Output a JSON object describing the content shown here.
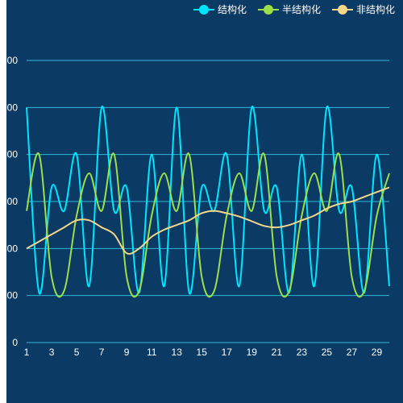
{
  "chart_data": {
    "type": "line",
    "x": [
      1,
      2,
      3,
      4,
      5,
      6,
      7,
      8,
      9,
      10,
      11,
      12,
      13,
      14,
      15,
      16,
      17,
      18,
      19,
      20,
      21,
      22,
      23,
      24,
      25,
      26,
      27,
      28,
      29,
      30
    ],
    "xticks": [
      "1",
      "3",
      "5",
      "7",
      "9",
      "11",
      "13",
      "15",
      "17",
      "19",
      "21",
      "23",
      "25",
      "27",
      "29"
    ],
    "yticks": [
      "0",
      "00",
      "00",
      "00",
      "00",
      "00",
      "00"
    ],
    "ylim": [
      0,
      600
    ],
    "grid": true,
    "legend_position": "top-right",
    "series": [
      {
        "name": "结构化",
        "color": "#00e5ff",
        "values": [
          500,
          106,
          330,
          280,
          400,
          120,
          500,
          280,
          330,
          106,
          400,
          120,
          500,
          106,
          330,
          280,
          400,
          120,
          500,
          280,
          330,
          106,
          400,
          120,
          500,
          280,
          330,
          106,
          400,
          120
        ]
      },
      {
        "name": "半结构化",
        "color": "#9be04a",
        "values": [
          280,
          400,
          140,
          110,
          270,
          360,
          280,
          400,
          140,
          110,
          270,
          360,
          280,
          400,
          140,
          110,
          270,
          360,
          280,
          400,
          140,
          110,
          270,
          360,
          280,
          400,
          140,
          110,
          270,
          360
        ]
      },
      {
        "name": "非结构化",
        "color": "#f5d78a",
        "values": [
          200,
          215,
          230,
          245,
          260,
          260,
          245,
          230,
          190,
          200,
          225,
          240,
          250,
          260,
          275,
          280,
          275,
          268,
          258,
          248,
          245,
          250,
          260,
          270,
          285,
          295,
          300,
          310,
          320,
          330
        ]
      }
    ]
  }
}
